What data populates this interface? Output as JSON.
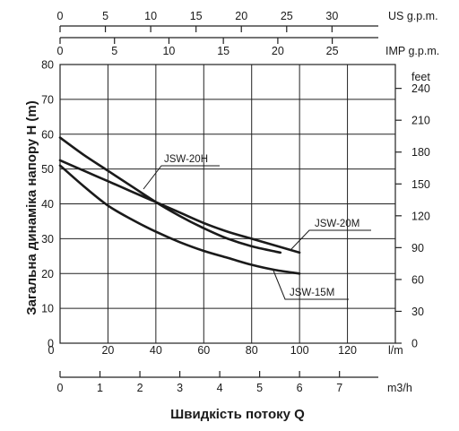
{
  "chart_data": {
    "type": "line",
    "title": "",
    "xlabel": "Швидкість потоку Q",
    "ylabel": "Загальна динаміка напору H (m)",
    "x_unit": "l/m",
    "xlim": [
      0,
      140
    ],
    "ylim": [
      0,
      80
    ],
    "x_ticks": [
      "0",
      "20",
      "40",
      "60",
      "80",
      "100",
      "120"
    ],
    "y_ticks": [
      "80",
      "70",
      "60",
      "50",
      "40",
      "30",
      "20",
      "10",
      "0"
    ],
    "grid": true,
    "secondary_axes": {
      "us_gpm": {
        "unit": "US g.p.m.",
        "ticks": [
          "0",
          "5",
          "10",
          "15",
          "20",
          "25",
          "30"
        ]
      },
      "imp_gpm": {
        "unit": "IMP g.p.m.",
        "ticks": [
          "0",
          "5",
          "10",
          "15",
          "20",
          "25"
        ]
      },
      "m3h": {
        "unit": "m3/h",
        "ticks": [
          "0",
          "1",
          "2",
          "3",
          "4",
          "5",
          "6",
          "7"
        ]
      },
      "feet": {
        "unit": "feet",
        "ticks": [
          "240",
          "210",
          "180",
          "150",
          "120",
          "90",
          "60",
          "30",
          "0"
        ]
      }
    },
    "series": [
      {
        "name": "JSW-20H",
        "x": [
          0,
          10,
          20,
          30,
          40,
          50,
          60,
          70,
          80,
          90,
          92
        ],
        "y": [
          59,
          54,
          49.5,
          45,
          40.5,
          36.5,
          33,
          30,
          27.8,
          26.3,
          26
        ]
      },
      {
        "name": "JSW-20M",
        "x": [
          0,
          10,
          20,
          30,
          40,
          50,
          60,
          70,
          80,
          90,
          100
        ],
        "y": [
          52.5,
          49.5,
          46.5,
          43.5,
          40.5,
          37.5,
          34.5,
          32,
          30,
          28,
          26
        ]
      },
      {
        "name": "JSW-15M",
        "x": [
          0,
          10,
          20,
          30,
          40,
          50,
          60,
          70,
          80,
          90,
          100
        ],
        "y": [
          51,
          45,
          39.5,
          35.5,
          32,
          29,
          26.5,
          24.5,
          22.5,
          21,
          20
        ]
      }
    ]
  }
}
